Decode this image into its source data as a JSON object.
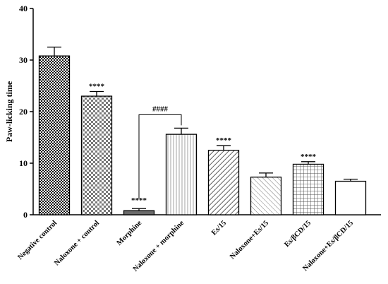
{
  "chart_data": {
    "type": "bar",
    "title": "",
    "xlabel": "",
    "ylabel": "Paw-licking time",
    "ylim": [
      0,
      40
    ],
    "yticks": [
      0,
      10,
      20,
      30,
      40
    ],
    "grid": false,
    "categories": [
      "Negative control",
      "Naloxone + control",
      "Morphine",
      "Naloxone + morphine",
      "Es/15",
      "Naloxone+Es/15",
      "Es/βCD/15",
      "Naloxone+Es/βCD/15"
    ],
    "values": [
      30.8,
      23.0,
      0.8,
      15.6,
      12.5,
      7.3,
      9.8,
      6.5
    ],
    "errors": [
      1.7,
      0.9,
      0.4,
      1.2,
      0.9,
      0.8,
      0.5,
      0.4
    ],
    "patterns": [
      "dense-check",
      "check",
      "solid-gray",
      "vertical",
      "diag-right",
      "diag-left",
      "grid",
      "none"
    ],
    "significance": [
      "",
      "****",
      "****",
      "",
      "****",
      "",
      "****",
      ""
    ],
    "comparison": {
      "from_index": 2,
      "to_index": 3,
      "label": "####"
    }
  }
}
